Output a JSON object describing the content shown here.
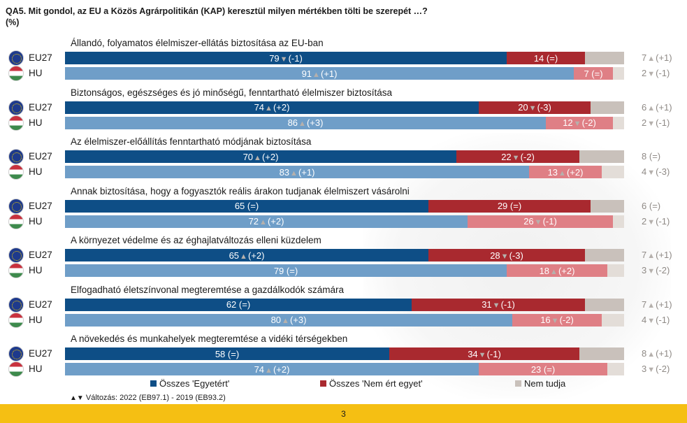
{
  "title_line1": "QA5. Mit gondol, az EU a Közös Agrárpolitikán (KAP) keresztül milyen mértékben tölti be szerepét …?",
  "title_line2": "(%)",
  "colors": {
    "eu_yes": "#0e4e86",
    "hu_yes": "#6f9ec8",
    "eu_no": "#a9292f",
    "hu_no": "#df7f85",
    "eu_dk": "#c9c1bb",
    "hu_dk": "#e3ddd8"
  },
  "legend": {
    "yes": "Összes 'Egyetért'",
    "no": "Összes 'Nem ért egyet'",
    "dk": "Nem tudja"
  },
  "footnote": "Változás: 2022 (EB97.1) - 2019 (EB93.2)",
  "page_number": "3",
  "chart_data": {
    "type": "bar",
    "orientation": "horizontal-stacked",
    "series": [
      {
        "name": "Összes 'Egyetért'"
      },
      {
        "name": "Összes 'Nem ért egyet'"
      },
      {
        "name": "Nem tudja"
      }
    ],
    "items": [
      {
        "question": "Állandó, folyamatos élelmiszer-ellátás biztosítása az EU-ban",
        "rows": [
          {
            "label": "EU27",
            "yes": 79,
            "yes_change": "(-1)",
            "yes_dir": "down",
            "no": 14,
            "no_change": "(=)",
            "no_dir": "",
            "dk": 7,
            "dk_change": "(+1)",
            "dk_dir": "up"
          },
          {
            "label": "HU",
            "yes": 91,
            "yes_change": "(+1)",
            "yes_dir": "up",
            "no": 7,
            "no_change": "(=)",
            "no_dir": "",
            "dk": 2,
            "dk_change": "(-1)",
            "dk_dir": "down"
          }
        ]
      },
      {
        "question": "Biztonságos, egészséges és jó minőségű, fenntartható élelmiszer biztosítása",
        "rows": [
          {
            "label": "EU27",
            "yes": 74,
            "yes_change": "(+2)",
            "yes_dir": "up",
            "no": 20,
            "no_change": "(-3)",
            "no_dir": "down",
            "dk": 6,
            "dk_change": "(+1)",
            "dk_dir": "up"
          },
          {
            "label": "HU",
            "yes": 86,
            "yes_change": "(+3)",
            "yes_dir": "up",
            "no": 12,
            "no_change": "(-2)",
            "no_dir": "down",
            "dk": 2,
            "dk_change": "(-1)",
            "dk_dir": "down"
          }
        ]
      },
      {
        "question": "Az élelmiszer-előállítás fenntartható módjának biztosítása",
        "rows": [
          {
            "label": "EU27",
            "yes": 70,
            "yes_change": "(+2)",
            "yes_dir": "up",
            "no": 22,
            "no_change": "(-2)",
            "no_dir": "down",
            "dk": 8,
            "dk_change": "(=)",
            "dk_dir": ""
          },
          {
            "label": "HU",
            "yes": 83,
            "yes_change": "(+1)",
            "yes_dir": "up",
            "no": 13,
            "no_change": "(+2)",
            "no_dir": "up",
            "dk": 4,
            "dk_change": "(-3)",
            "dk_dir": "down"
          }
        ]
      },
      {
        "question": "Annak biztosítása, hogy a fogyasztók reális árakon tudjanak élelmiszert vásárolni",
        "rows": [
          {
            "label": "EU27",
            "yes": 65,
            "yes_change": "(=)",
            "yes_dir": "",
            "no": 29,
            "no_change": "(=)",
            "no_dir": "",
            "dk": 6,
            "dk_change": "(=)",
            "dk_dir": ""
          },
          {
            "label": "HU",
            "yes": 72,
            "yes_change": "(+2)",
            "yes_dir": "up",
            "no": 26,
            "no_change": "(-1)",
            "no_dir": "down",
            "dk": 2,
            "dk_change": "(-1)",
            "dk_dir": "down"
          }
        ]
      },
      {
        "question": "A környezet védelme és az éghajlatváltozás elleni küzdelem",
        "rows": [
          {
            "label": "EU27",
            "yes": 65,
            "yes_change": "(+2)",
            "yes_dir": "up",
            "no": 28,
            "no_change": "(-3)",
            "no_dir": "down",
            "dk": 7,
            "dk_change": "(+1)",
            "dk_dir": "up"
          },
          {
            "label": "HU",
            "yes": 79,
            "yes_change": "(=)",
            "yes_dir": "",
            "no": 18,
            "no_change": "(+2)",
            "no_dir": "up",
            "dk": 3,
            "dk_change": "(-2)",
            "dk_dir": "down"
          }
        ]
      },
      {
        "question": "Elfogadható életszínvonal megteremtése a gazdálkodók számára",
        "rows": [
          {
            "label": "EU27",
            "yes": 62,
            "yes_change": "(=)",
            "yes_dir": "",
            "no": 31,
            "no_change": "(-1)",
            "no_dir": "down",
            "dk": 7,
            "dk_change": "(+1)",
            "dk_dir": "up"
          },
          {
            "label": "HU",
            "yes": 80,
            "yes_change": "(+3)",
            "yes_dir": "up",
            "no": 16,
            "no_change": "(-2)",
            "no_dir": "down",
            "dk": 4,
            "dk_change": "(-1)",
            "dk_dir": "down"
          }
        ]
      },
      {
        "question": "A növekedés és munkahelyek megteremtése a vidéki térségekben",
        "rows": [
          {
            "label": "EU27",
            "yes": 58,
            "yes_change": "(=)",
            "yes_dir": "",
            "no": 34,
            "no_change": "(-1)",
            "no_dir": "down",
            "dk": 8,
            "dk_change": "(+1)",
            "dk_dir": "up"
          },
          {
            "label": "HU",
            "yes": 74,
            "yes_change": "(+2)",
            "yes_dir": "up",
            "no": 23,
            "no_change": "(=)",
            "no_dir": "",
            "dk": 3,
            "dk_change": "(-2)",
            "dk_dir": "down"
          }
        ]
      }
    ]
  }
}
